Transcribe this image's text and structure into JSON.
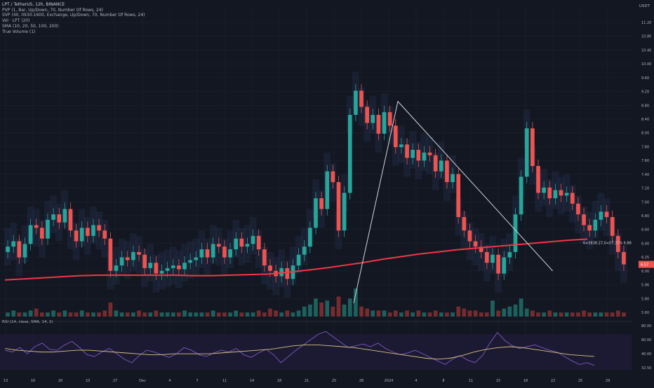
{
  "legend": {
    "title": "LPT / TetherUS, 12h, BINANCE",
    "lines": [
      "PVP (1, Bar, Up/Down, 70, Number Of Rows, 24)",
      "SVP (40, 0930-1600, Exchange, Up/Down, 70, Number Of Rows, 24)",
      "Vol · LPT (20)",
      "SMA (10, 20, 50, 100, 200)",
      "True Volume (1)"
    ]
  },
  "currency": "USDT",
  "price_axis": {
    "labels": [
      "11.20",
      "10.80",
      "10.40",
      "10.00",
      "9.60",
      "9.20",
      "8.80",
      "8.40",
      "8.00",
      "7.80",
      "7.60",
      "7.40",
      "7.20",
      "7.00",
      "6.80",
      "6.60",
      "6.40",
      "6.25",
      "6.00",
      "5.96",
      "5.80",
      "5.60"
    ],
    "price_tag": "6.57"
  },
  "rsi": {
    "legend": "RSI (14, close, SMA, 14, 2)",
    "labels": [
      "80.00",
      "60.00",
      "40.00",
      "32.50"
    ]
  },
  "time_axis": [
    "13",
    "16",
    "20",
    "23",
    "27",
    "Dec",
    "4",
    "7",
    "11",
    "14",
    "18",
    "21",
    "25",
    "28",
    "2024",
    "4",
    "8",
    "11",
    "15",
    "18",
    "22",
    "25",
    "29"
  ],
  "annotation": "6=5838.27,0=57.37% 6.88",
  "colors": {
    "background": "#131722",
    "up": "#26a69a",
    "down": "#ef5350",
    "sma": "#f23645",
    "rsi": "#7e57c2",
    "rsi_ma": "#d8c47a",
    "rsi_band": "#1e1b35"
  },
  "chart_data": {
    "type": "candlestick",
    "symbol": "LPT / TetherUS",
    "interval": "12h",
    "exchange": "BINANCE",
    "closes": [
      6.9,
      7.0,
      6.7,
      6.95,
      7.3,
      7.25,
      7.05,
      7.4,
      7.5,
      7.35,
      7.6,
      7.2,
      7.0,
      7.25,
      7.1,
      7.3,
      7.2,
      7.05,
      6.45,
      6.55,
      6.7,
      6.65,
      6.8,
      6.75,
      6.5,
      6.6,
      6.4,
      6.45,
      6.5,
      6.55,
      6.48,
      6.6,
      6.65,
      6.7,
      6.85,
      6.7,
      6.95,
      6.9,
      6.7,
      6.85,
      7.05,
      6.9,
      6.95,
      7.1,
      6.85,
      6.55,
      6.45,
      6.35,
      6.5,
      6.3,
      6.55,
      6.75,
      6.9,
      7.25,
      7.8,
      7.6,
      8.3,
      8.1,
      7.2,
      7.9,
      9.35,
      9.8,
      9.5,
      9.2,
      9.35,
      9.0,
      9.4,
      9.15,
      8.75,
      8.8,
      8.55,
      8.7,
      8.5,
      8.65,
      8.6,
      8.3,
      8.5,
      8.1,
      8.25,
      7.45,
      7.2,
      7.0,
      6.9,
      6.8,
      6.6,
      6.75,
      6.4,
      6.7,
      6.8,
      7.5,
      8.2,
      9.1,
      8.4,
      7.9,
      8.0,
      7.8,
      7.95,
      7.85,
      7.9,
      7.7,
      7.5,
      7.3,
      7.2,
      7.4,
      7.55,
      7.45,
      7.1,
      6.8,
      6.57
    ],
    "volume": [
      2,
      3,
      2,
      2,
      3,
      4,
      2,
      2,
      3,
      2,
      3,
      2,
      2,
      3,
      2,
      2,
      2,
      3,
      7,
      3,
      2,
      2,
      2,
      3,
      2,
      2,
      3,
      2,
      2,
      2,
      2,
      3,
      2,
      2,
      2,
      2,
      3,
      2,
      2,
      2,
      3,
      2,
      2,
      2,
      3,
      2,
      4,
      3,
      2,
      3,
      2,
      3,
      5,
      6,
      9,
      7,
      8,
      5,
      10,
      6,
      9,
      14,
      5,
      4,
      3,
      3,
      3,
      2,
      3,
      2,
      3,
      2,
      3,
      2,
      2,
      3,
      2,
      2,
      2,
      5,
      4,
      3,
      3,
      2,
      2,
      8,
      3,
      4,
      5,
      6,
      9,
      4,
      3,
      2,
      2,
      3,
      2,
      2,
      2,
      2,
      2,
      3,
      2,
      2,
      2,
      2,
      2,
      3,
      2
    ],
    "sma200": [
      6.28,
      6.3,
      6.32,
      6.34,
      6.36,
      6.37,
      6.37,
      6.37,
      6.37,
      6.37,
      6.36,
      6.36,
      6.37,
      6.38,
      6.39,
      6.42,
      6.46,
      6.5,
      6.55,
      6.6,
      6.66,
      6.71,
      6.76,
      6.8,
      6.84,
      6.87,
      6.9,
      6.93,
      6.96,
      6.99,
      7.02,
      7.04
    ],
    "rsi": [
      52,
      50,
      55,
      48,
      56,
      60,
      53,
      52,
      58,
      62,
      55,
      47,
      45,
      50,
      54,
      48,
      42,
      38,
      46,
      52,
      50,
      47,
      44,
      48,
      55,
      52,
      47,
      45,
      49,
      52,
      50,
      54,
      47,
      44,
      49,
      53,
      47,
      38,
      45,
      52,
      58,
      64,
      70,
      73,
      67,
      61,
      55,
      57,
      59,
      56,
      60,
      54,
      50,
      47,
      49,
      52,
      48,
      44,
      40,
      36,
      42,
      46,
      41,
      38,
      46,
      60,
      72,
      63,
      57,
      54,
      56,
      58,
      55,
      52,
      50,
      45,
      40,
      36,
      38,
      35
    ],
    "rsi_ma": [
      54,
      52,
      51,
      50,
      50,
      51,
      52,
      52,
      51,
      50,
      49,
      48,
      47,
      47,
      48,
      48,
      48,
      48,
      49,
      50,
      51,
      52,
      53,
      55,
      57,
      58,
      58,
      57,
      56,
      55,
      53,
      51,
      49,
      47,
      45,
      43,
      42,
      43,
      46,
      50,
      53,
      55,
      56,
      55,
      53,
      51,
      49,
      47,
      46,
      45
    ],
    "price_range": [
      5.6,
      11.2
    ],
    "rsi_range": [
      30,
      82
    ],
    "drawing": {
      "type": "polyline",
      "points": [
        [
          8.0,
          5.85
        ],
        [
          9.0,
          9.6
        ],
        [
          11.0,
          7.8
        ],
        [
          12.5,
          6.45
        ]
      ]
    }
  }
}
